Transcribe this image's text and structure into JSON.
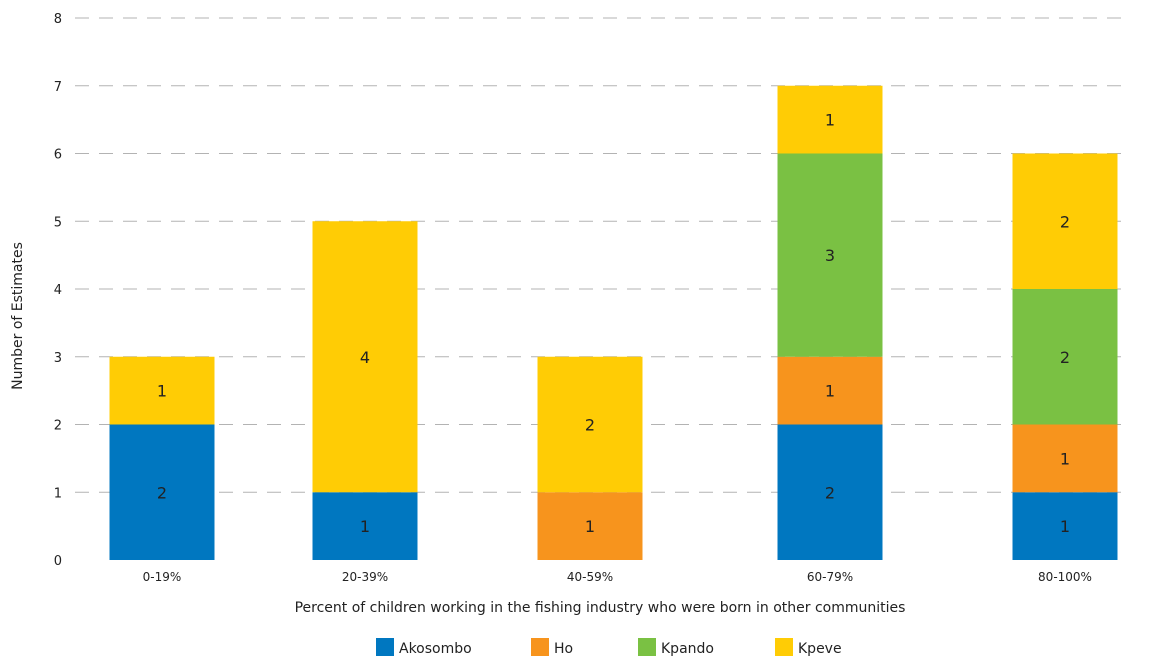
{
  "chart_data": {
    "type": "bar",
    "stacked": true,
    "categories": [
      "0-19%",
      "20-39%",
      "40-59%",
      "60-79%",
      "80-100%"
    ],
    "series": [
      {
        "name": "Akosombo",
        "color": "#0077c0",
        "values": [
          2,
          1,
          0,
          2,
          1
        ]
      },
      {
        "name": "Ho",
        "color": "#f7941d",
        "values": [
          0,
          0,
          1,
          1,
          1
        ]
      },
      {
        "name": "Kpando",
        "color": "#7ac143",
        "values": [
          0,
          0,
          0,
          3,
          2
        ]
      },
      {
        "name": "Kpeve",
        "color": "#ffcc05",
        "values": [
          1,
          4,
          2,
          1,
          2
        ]
      }
    ],
    "title": "",
    "xlabel": "Percent of children working in the fishing industry who were born in other communities",
    "ylabel": "Number of Estimates",
    "ylim": [
      0,
      8
    ],
    "yticks": [
      0,
      1,
      2,
      3,
      4,
      5,
      6,
      7,
      8
    ],
    "grid": true,
    "legend_position": "bottom"
  }
}
